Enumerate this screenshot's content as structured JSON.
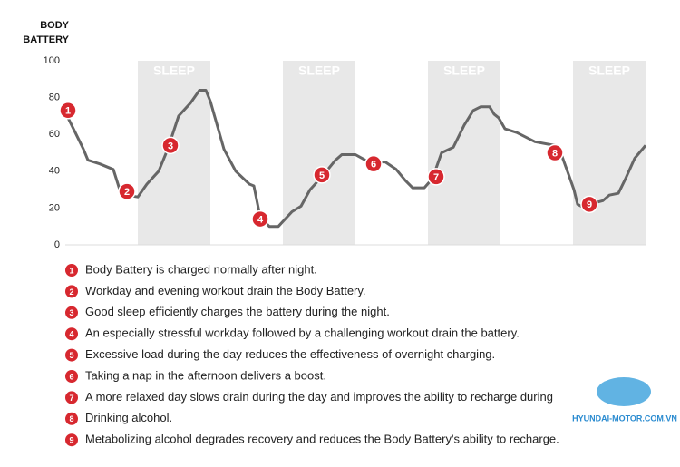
{
  "chart_data": {
    "type": "line",
    "y_label": "BODY BATTERY",
    "xlim": [
      0,
      64
    ],
    "ylim": [
      0,
      100
    ],
    "yticks": [
      0,
      20,
      40,
      60,
      80,
      100
    ],
    "color": "#666666",
    "x": [
      0,
      1,
      2,
      2.5,
      3.8,
      5.3,
      6,
      6.8,
      8,
      9,
      10.3,
      11.3,
      12.5,
      13.8,
      14.8,
      15.5,
      16,
      17.5,
      18.8,
      20.3,
      20.8,
      21.5,
      22.5,
      23.5,
      25,
      26,
      27,
      28.3,
      29.8,
      30.5,
      32,
      33.1,
      34,
      35.3,
      36.5,
      37.5,
      38.3,
      39.6,
      40.5,
      41.5,
      42.8,
      44,
      45,
      45.8,
      46.8,
      47.3,
      47.8,
      48.5,
      49.8,
      51.8,
      54,
      54.8,
      55.6,
      56.1,
      56.5,
      57.3,
      57.8,
      59.3,
      60,
      61,
      61.8,
      62.8,
      64
    ],
    "values": [
      72,
      62,
      52,
      46,
      44,
      41,
      30,
      27,
      26,
      33,
      40,
      52,
      70,
      77,
      84,
      84,
      78,
      52,
      40,
      33,
      32,
      15,
      10,
      10,
      18,
      21,
      30,
      37,
      46,
      49,
      49,
      46,
      45,
      45,
      41,
      35,
      31,
      31,
      36,
      50,
      53,
      65,
      73,
      75,
      75,
      71,
      69,
      63,
      61,
      56,
      54,
      48,
      37,
      30,
      22,
      20,
      22,
      24,
      27,
      28,
      36,
      47,
      54
    ],
    "bands": [
      {
        "label": "SLEEP",
        "start": 8,
        "end": 16
      },
      {
        "label": "SLEEP",
        "start": 24,
        "end": 32
      },
      {
        "label": "SLEEP",
        "start": 40,
        "end": 48
      },
      {
        "label": "SLEEP",
        "start": 56,
        "end": 64
      }
    ],
    "marker_color": "#d7282f",
    "annotations": [
      {
        "label": "1",
        "x": 0.3,
        "y": 73
      },
      {
        "label": "2",
        "x": 6.8,
        "y": 29
      },
      {
        "label": "3",
        "x": 11.6,
        "y": 54
      },
      {
        "label": "4",
        "x": 21.5,
        "y": 14
      },
      {
        "label": "5",
        "x": 28.3,
        "y": 38
      },
      {
        "label": "6",
        "x": 34,
        "y": 44
      },
      {
        "label": "7",
        "x": 40.9,
        "y": 37
      },
      {
        "label": "8",
        "x": 54,
        "y": 50
      },
      {
        "label": "9",
        "x": 57.8,
        "y": 22
      }
    ],
    "notes": [
      "Body Battery is charged normally after night.",
      "Workday and evening workout drain the Body Battery.",
      "Good sleep efficiently charges the battery during the night.",
      "An especially stressful workday followed by a challenging workout drain the battery.",
      "Excessive load during the day reduces the effectiveness of overnight charging.",
      "Taking a nap in the afternoon delivers a boost.",
      "A more relaxed day slows drain during the day and improves the ability to recharge during",
      "Drinking alcohol.",
      "Metabolizing alcohol degrades recovery and reduces the Body Battery's ability to recharge."
    ]
  },
  "watermark": "HYUNDAI-MOTOR.COM.VN"
}
